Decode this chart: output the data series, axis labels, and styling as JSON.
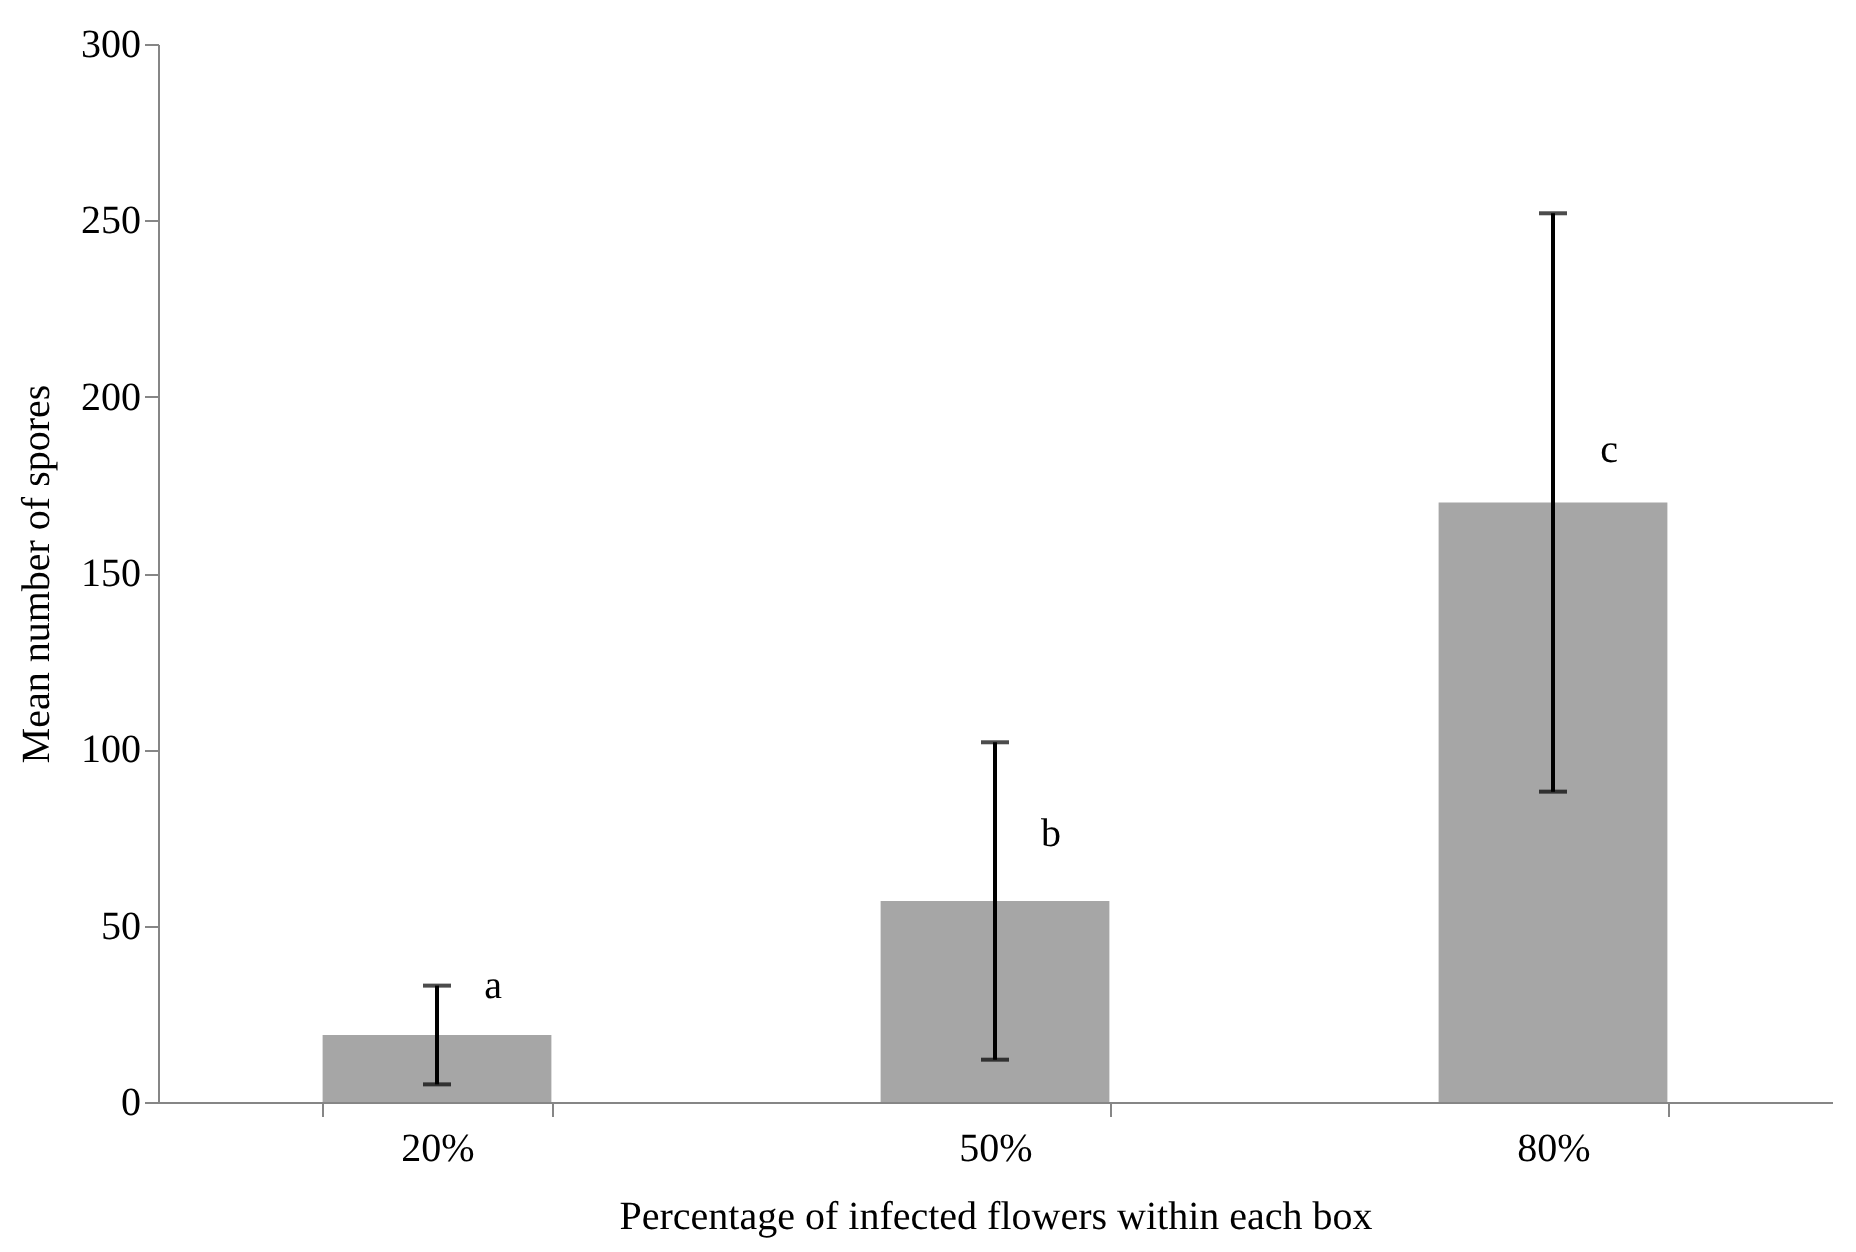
{
  "chart_data": {
    "type": "bar",
    "xlabel": "Percentage of infected flowers within each box",
    "ylabel": "Mean number of spores",
    "categories": [
      "20%",
      "50%",
      "80%"
    ],
    "values": [
      19,
      57,
      170
    ],
    "errors": [
      14,
      45,
      82
    ],
    "color": "#a6a6a6",
    "ylim": [
      0,
      300
    ],
    "yticks": [
      0,
      50,
      100,
      150,
      200,
      250,
      300
    ],
    "grid": false,
    "annotations": [
      {
        "text": "a",
        "x": "20%",
        "y": 33
      },
      {
        "text": "b",
        "x": "50%",
        "y": 76
      },
      {
        "text": "c",
        "x": "80%",
        "y": 185
      }
    ]
  }
}
